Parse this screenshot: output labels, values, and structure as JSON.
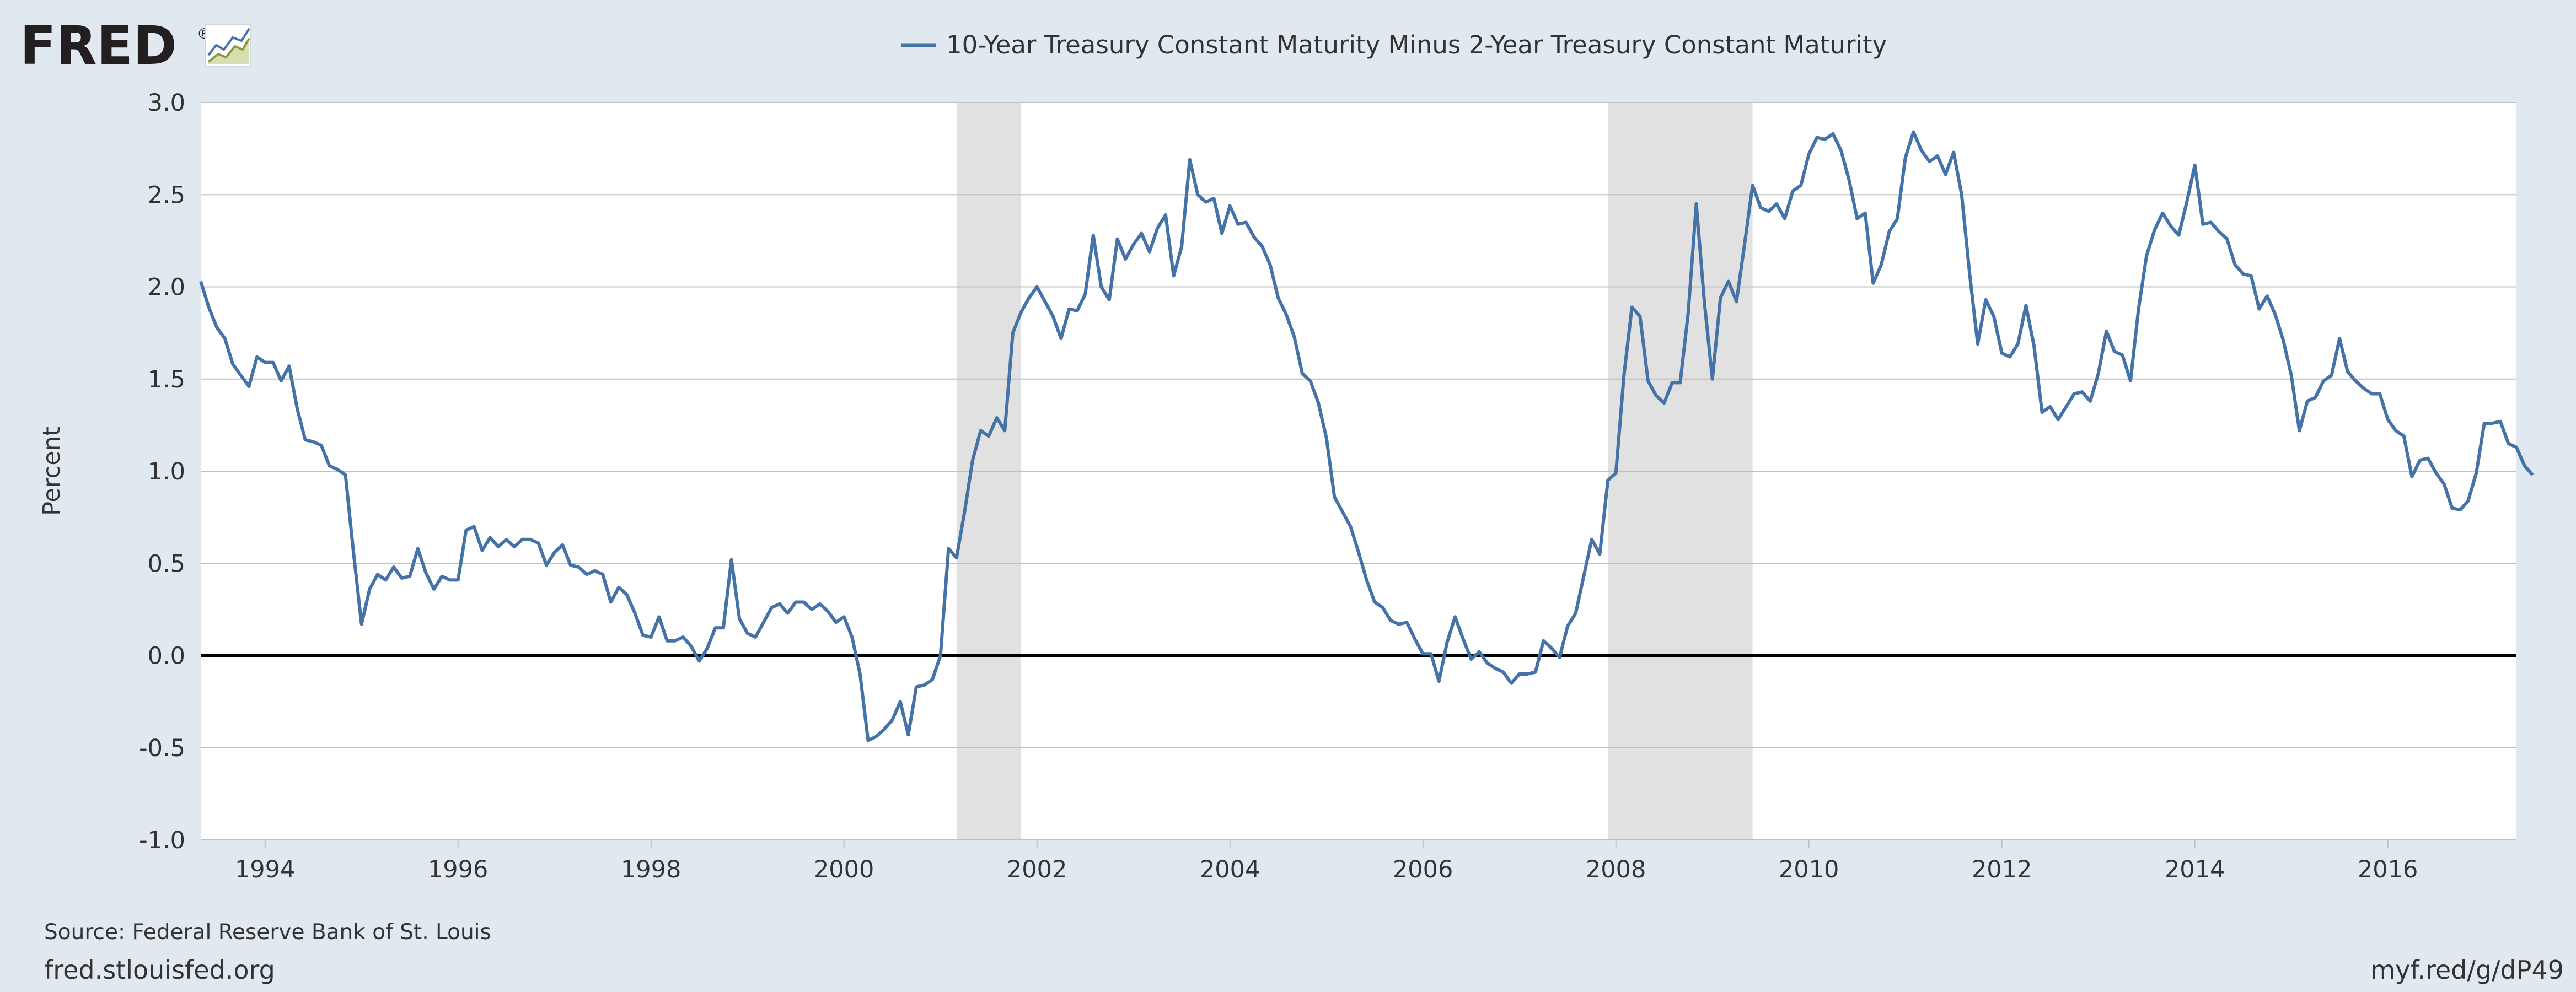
{
  "logo": {
    "text": "FRED",
    "registered": "®"
  },
  "footer": {
    "source": "Source: Federal Reserve Bank of St. Louis",
    "site": "fred.stlouisfed.org",
    "short_url": "myf.red/g/dP49"
  },
  "colors": {
    "background": "#e1e9f0",
    "plot_background": "#ffffff",
    "series": "#4572a7",
    "recession": "#e1e1e1",
    "gridline": "#c0c0c0",
    "zero_line": "#000000"
  },
  "chart_data": {
    "type": "line",
    "title": "10-Year Treasury Constant Maturity Minus 2-Year Treasury Constant Maturity",
    "xlabel": "",
    "ylabel": "Percent",
    "ylim": [
      -1.0,
      3.0
    ],
    "yticks": [
      -1.0,
      -0.5,
      0.0,
      0.5,
      1.0,
      1.5,
      2.0,
      2.5,
      3.0
    ],
    "ytick_labels": [
      "-1.0",
      "-0.5",
      "0.0",
      "0.5",
      "1.0",
      "1.5",
      "2.0",
      "2.5",
      "3.0"
    ],
    "xlim": [
      "1993-05",
      "2017-05"
    ],
    "xticks": [
      "1994",
      "1996",
      "1998",
      "2000",
      "2002",
      "2004",
      "2006",
      "2008",
      "2010",
      "2012",
      "2014",
      "2016"
    ],
    "grid": true,
    "legend": "top-center",
    "reference_line": 0.0,
    "recessions": [
      {
        "start": "2001-03",
        "end": "2001-11"
      },
      {
        "start": "2007-12",
        "end": "2009-06"
      }
    ],
    "series": [
      {
        "name": "10-Year Treasury Constant Maturity Minus 2-Year Treasury Constant Maturity",
        "frequency": "monthly",
        "start": "1993-05",
        "values": [
          2.03,
          1.89,
          1.78,
          1.72,
          1.58,
          1.52,
          1.46,
          1.62,
          1.59,
          1.59,
          1.49,
          1.57,
          1.34,
          1.17,
          1.16,
          1.14,
          1.03,
          1.01,
          0.98,
          0.56,
          0.17,
          0.36,
          0.44,
          0.41,
          0.48,
          0.42,
          0.43,
          0.58,
          0.45,
          0.36,
          0.43,
          0.41,
          0.41,
          0.68,
          0.7,
          0.57,
          0.64,
          0.59,
          0.63,
          0.59,
          0.63,
          0.63,
          0.61,
          0.49,
          0.56,
          0.6,
          0.49,
          0.48,
          0.44,
          0.46,
          0.44,
          0.29,
          0.37,
          0.33,
          0.23,
          0.11,
          0.1,
          0.21,
          0.08,
          0.08,
          0.1,
          0.05,
          -0.03,
          0.04,
          0.15,
          0.15,
          0.52,
          0.2,
          0.12,
          0.1,
          0.18,
          0.26,
          0.28,
          0.23,
          0.29,
          0.29,
          0.25,
          0.28,
          0.24,
          0.18,
          0.21,
          0.1,
          -0.1,
          -0.46,
          -0.44,
          -0.4,
          -0.35,
          -0.25,
          -0.43,
          -0.17,
          -0.16,
          -0.13,
          0.0,
          0.58,
          0.53,
          0.78,
          1.06,
          1.22,
          1.19,
          1.29,
          1.22,
          1.75,
          1.86,
          1.94,
          2.0,
          1.92,
          1.84,
          1.72,
          1.88,
          1.87,
          1.96,
          2.28,
          2.0,
          1.93,
          2.26,
          2.15,
          2.23,
          2.29,
          2.19,
          2.32,
          2.39,
          2.06,
          2.22,
          2.69,
          2.5,
          2.46,
          2.48,
          2.29,
          2.44,
          2.34,
          2.35,
          2.27,
          2.22,
          2.12,
          1.94,
          1.85,
          1.73,
          1.53,
          1.49,
          1.37,
          1.18,
          0.86,
          0.78,
          0.7,
          0.56,
          0.41,
          0.29,
          0.26,
          0.19,
          0.17,
          0.18,
          0.09,
          0.01,
          0.01,
          -0.14,
          0.07,
          0.21,
          0.09,
          -0.02,
          0.02,
          -0.04,
          -0.07,
          -0.09,
          -0.15,
          -0.1,
          -0.1,
          -0.09,
          0.08,
          0.04,
          -0.01,
          0.16,
          0.23,
          0.43,
          0.63,
          0.55,
          0.95,
          0.99,
          1.52,
          1.89,
          1.84,
          1.49,
          1.41,
          1.37,
          1.48,
          1.48,
          1.86,
          2.45,
          1.92,
          1.5,
          1.94,
          2.03,
          1.92,
          2.23,
          2.55,
          2.43,
          2.41,
          2.45,
          2.37,
          2.52,
          2.55,
          2.72,
          2.81,
          2.8,
          2.83,
          2.74,
          2.58,
          2.37,
          2.4,
          2.02,
          2.12,
          2.3,
          2.37,
          2.7,
          2.84,
          2.74,
          2.68,
          2.71,
          2.61,
          2.73,
          2.5,
          2.07,
          1.69,
          1.93,
          1.84,
          1.64,
          1.62,
          1.69,
          1.9,
          1.68,
          1.32,
          1.35,
          1.28,
          1.35,
          1.42,
          1.43,
          1.38,
          1.53,
          1.76,
          1.65,
          1.63,
          1.49,
          1.88,
          2.17,
          2.31,
          2.4,
          2.33,
          2.28,
          2.46,
          2.66,
          2.34,
          2.35,
          2.3,
          2.26,
          2.12,
          2.07,
          2.06,
          1.88,
          1.95,
          1.85,
          1.71,
          1.52,
          1.22,
          1.38,
          1.4,
          1.49,
          1.52,
          1.72,
          1.54,
          1.49,
          1.45,
          1.42,
          1.42,
          1.28,
          1.22,
          1.19,
          0.97,
          1.06,
          1.07,
          0.99,
          0.93,
          0.8,
          0.79,
          0.84,
          0.99,
          1.26,
          1.26,
          1.27,
          1.15,
          1.13,
          1.03,
          0.98
        ]
      }
    ]
  }
}
